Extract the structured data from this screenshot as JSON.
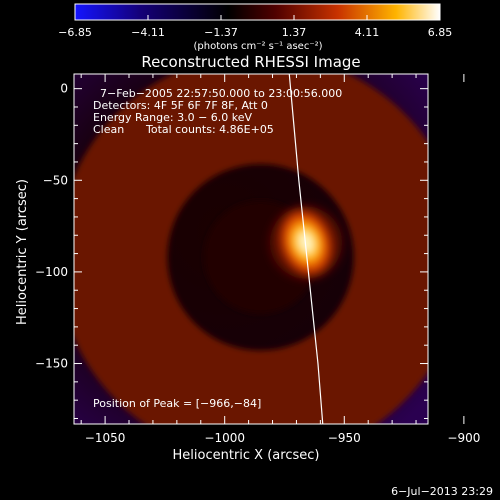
{
  "chart_data": {
    "type": "heatmap",
    "title": "Reconstructed RHESSI Image",
    "xlabel": "Heliocentric X (arcsec)",
    "ylabel": "Heliocentric Y (arcsec)",
    "xlim": [
      -1063,
      -915
    ],
    "ylim": [
      -183,
      8
    ],
    "x_ticks": [
      -1050,
      -1000,
      -950,
      -900
    ],
    "x_tick_labels": [
      "−1050",
      "−1000",
      "−950",
      "−900"
    ],
    "y_ticks": [
      0,
      -50,
      -100,
      -150
    ],
    "y_tick_labels": [
      "0",
      "−50",
      "−100",
      "−150"
    ],
    "colorbar": {
      "range": [
        -6.85,
        6.85
      ],
      "ticks": [
        -6.85,
        -4.11,
        -1.37,
        1.37,
        4.11,
        6.85
      ],
      "tick_labels": [
        "−6.85",
        "−4.11",
        "−1.37",
        "1.37",
        "4.11",
        "6.85"
      ],
      "unit_label": "(photons cm⁻² s⁻¹ asec⁻²)",
      "colors": [
        "#1414ff",
        "#140078",
        "#000000",
        "#500000",
        "#c83200",
        "#ffb400",
        "#ffffff"
      ]
    },
    "annotations": {
      "time_range": "7−Feb−2005 22:57:50.000 to 23:00:56.000",
      "detectors": "Detectors: 4F 5F 6F 7F 8F, Att 0",
      "energy_range": "Energy Range: 3.0 − 6.0 keV",
      "clean": "Clean",
      "total_counts": "Total counts: 4.86E+05",
      "peak": "Position of Peak = [−966,−84]"
    },
    "peak": {
      "x": -966,
      "y": -84,
      "value": 6.85
    },
    "ring": {
      "center_x": -985,
      "center_y": -92,
      "radius": 62,
      "value": 2.2
    },
    "limb_line": [
      [
        -973,
        8
      ],
      [
        -969,
        -50
      ],
      [
        -965,
        -100
      ],
      [
        -961,
        -150
      ],
      [
        -959,
        -183
      ]
    ]
  },
  "footer": {
    "date": "6−Jul−2013 23:29"
  }
}
